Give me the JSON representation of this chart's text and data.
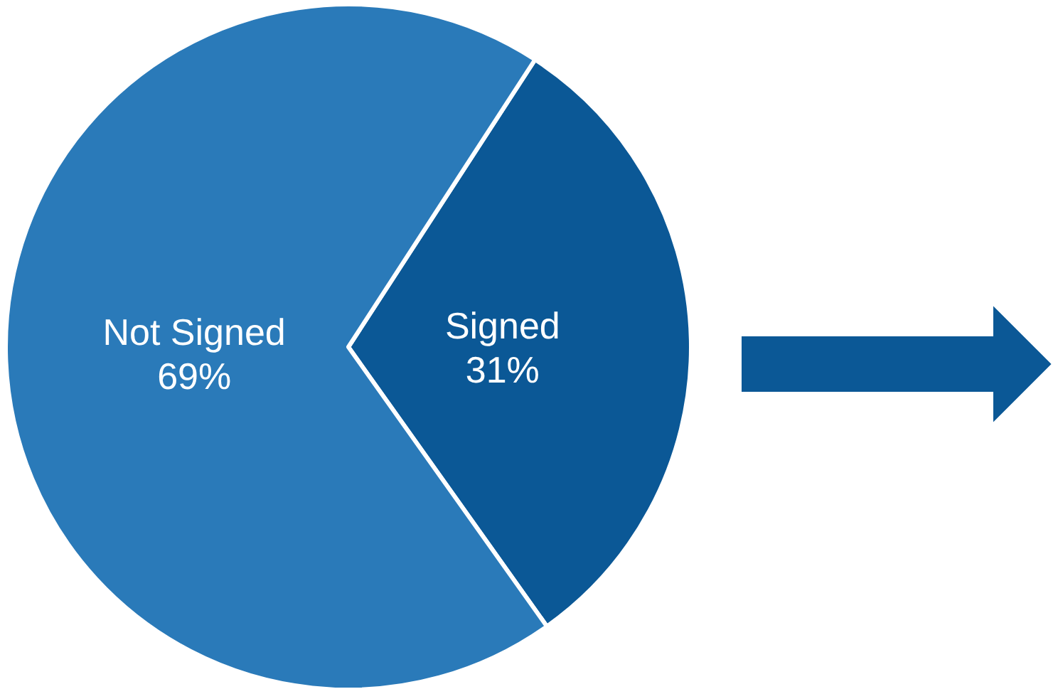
{
  "chart_data": {
    "type": "pie",
    "categories": [
      "Signed",
      "Not Signed"
    ],
    "values": [
      31,
      69
    ],
    "colors": [
      "#0b5896",
      "#2a7ab9"
    ],
    "value_labels": [
      "31%",
      "69%"
    ]
  }
}
